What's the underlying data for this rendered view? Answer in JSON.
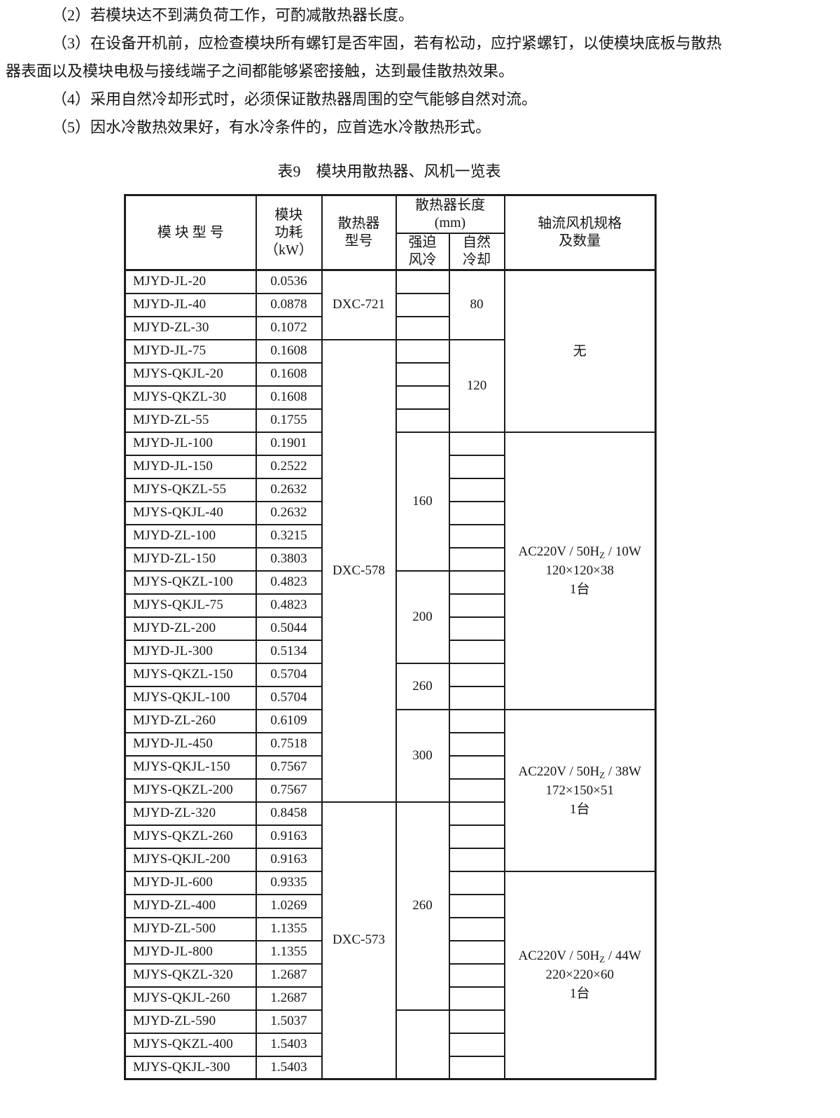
{
  "page": {
    "paragraphs": [
      {
        "lines": [
          "（2）若模块达不到满负荷工作，可酌减散热器长度。"
        ]
      },
      {
        "lines": [
          "（3）在设备开机前，应检查模块所有螺钉是否牢固，若有松动，应拧紧螺钉，以使模块底板与散热",
          "器表面以及模块电极与接线端子之间都能够紧密接触，达到最佳散热效果。"
        ]
      },
      {
        "lines": [
          "（4）采用自然冷却形式时，必须保证散热器周围的空气能够自然对流。"
        ]
      },
      {
        "lines": [
          "（5）因水冷散热效果好，有水冷条件的，应首选水冷散热形式。"
        ]
      }
    ],
    "table_title": "表9　模块用散热器、风机一览表"
  },
  "table": {
    "headers": {
      "module_model": "模 块 型 号",
      "module_power_lines": [
        "模块",
        "功耗",
        "（kW）"
      ],
      "heatsink_model_lines": [
        "散热器",
        "型号"
      ],
      "heatsink_length_lines": [
        "散热器长度",
        "(mm)"
      ],
      "forced_air_lines": [
        "强迫",
        "风冷"
      ],
      "natural_cooling_lines": [
        "自然",
        "冷却"
      ],
      "fan_spec_lines": [
        "轴流风机规格",
        "及数量"
      ]
    },
    "rows": [
      {
        "model": "MJYD-JL-20",
        "power": "0.0536"
      },
      {
        "model": "MJYD-JL-40",
        "power": "0.0878"
      },
      {
        "model": "MJYD-ZL-30",
        "power": "0.1072"
      },
      {
        "model": "MJYD-JL-75",
        "power": "0.1608"
      },
      {
        "model": "MJYS-QKJL-20",
        "power": "0.1608"
      },
      {
        "model": "MJYS-QKZL-30",
        "power": "0.1608"
      },
      {
        "model": "MJYD-ZL-55",
        "power": "0.1755"
      },
      {
        "model": "MJYD-JL-100",
        "power": "0.1901"
      },
      {
        "model": "MJYD-JL-150",
        "power": "0.2522"
      },
      {
        "model": "MJYS-QKZL-55",
        "power": "0.2632"
      },
      {
        "model": "MJYS-QKJL-40",
        "power": "0.2632"
      },
      {
        "model": "MJYD-ZL-100",
        "power": "0.3215"
      },
      {
        "model": "MJYD-ZL-150",
        "power": "0.3803"
      },
      {
        "model": "MJYS-QKZL-100",
        "power": "0.4823"
      },
      {
        "model": "MJYS-QKJL-75",
        "power": "0.4823"
      },
      {
        "model": "MJYD-ZL-200",
        "power": "0.5044"
      },
      {
        "model": "MJYD-JL-300",
        "power": "0.5134"
      },
      {
        "model": "MJYS-QKZL-150",
        "power": "0.5704"
      },
      {
        "model": "MJYS-QKJL-100",
        "power": "0.5704"
      },
      {
        "model": "MJYD-ZL-260",
        "power": "0.6109"
      },
      {
        "model": "MJYD-JL-450",
        "power": "0.7518"
      },
      {
        "model": "MJYS-QKJL-150",
        "power": "0.7567"
      },
      {
        "model": "MJYS-QKZL-200",
        "power": "0.7567"
      },
      {
        "model": "MJYD-ZL-320",
        "power": "0.8458"
      },
      {
        "model": "MJYS-QKZL-260",
        "power": "0.9163"
      },
      {
        "model": "MJYS-QKJL-200",
        "power": "0.9163"
      },
      {
        "model": "MJYD-JL-600",
        "power": "0.9335"
      },
      {
        "model": "MJYD-ZL-400",
        "power": "1.0269"
      },
      {
        "model": "MJYD-ZL-500",
        "power": "1.1355"
      },
      {
        "model": "MJYD-JL-800",
        "power": "1.1355"
      },
      {
        "model": "MJYS-QKZL-320",
        "power": "1.2687"
      },
      {
        "model": "MJYS-QKJL-260",
        "power": "1.2687"
      },
      {
        "model": "MJYD-ZL-590",
        "power": "1.5037"
      },
      {
        "model": "MJYS-QKZL-400",
        "power": "1.5403"
      },
      {
        "model": "MJYS-QKJL-300",
        "power": "1.5403"
      }
    ],
    "heatsink_groups": [
      {
        "model": "DXC-721",
        "span": 3
      },
      {
        "model": "DXC-578",
        "span": 20
      },
      {
        "model": "DXC-573",
        "span": 12
      }
    ],
    "forced_air_cells": [
      {
        "value": "",
        "span": 1
      },
      {
        "value": "",
        "span": 1
      },
      {
        "value": "",
        "span": 1
      },
      {
        "value": "",
        "span": 1
      },
      {
        "value": "",
        "span": 1
      },
      {
        "value": "",
        "span": 1
      },
      {
        "value": "",
        "span": 1
      },
      {
        "value": "160",
        "span": 6
      },
      {
        "value": "200",
        "span": 4
      },
      {
        "value": "260",
        "span": 2
      },
      {
        "value": "300",
        "span": 4
      },
      {
        "value": "260",
        "span": 9
      },
      {
        "value": "",
        "span": 3
      }
    ],
    "natural_cooling_cells": [
      {
        "value": "80",
        "span": 3
      },
      {
        "value": "120",
        "span": 4
      },
      {
        "value": "",
        "span": 1
      },
      {
        "value": "",
        "span": 1
      },
      {
        "value": "",
        "span": 1
      },
      {
        "value": "",
        "span": 1
      },
      {
        "value": "",
        "span": 1
      },
      {
        "value": "",
        "span": 1
      },
      {
        "value": "",
        "span": 1
      },
      {
        "value": "",
        "span": 1
      },
      {
        "value": "",
        "span": 1
      },
      {
        "value": "",
        "span": 1
      },
      {
        "value": "",
        "span": 1
      },
      {
        "value": "",
        "span": 1
      },
      {
        "value": "",
        "span": 1
      },
      {
        "value": "",
        "span": 1
      },
      {
        "value": "",
        "span": 1
      },
      {
        "value": "",
        "span": 1
      },
      {
        "value": "",
        "span": 1
      },
      {
        "value": "",
        "span": 1
      },
      {
        "value": "",
        "span": 1
      },
      {
        "value": "",
        "span": 1
      },
      {
        "value": "",
        "span": 1
      },
      {
        "value": "",
        "span": 1
      },
      {
        "value": "",
        "span": 1
      },
      {
        "value": "",
        "span": 1
      },
      {
        "value": "",
        "span": 1
      },
      {
        "value": "",
        "span": 1
      },
      {
        "value": "",
        "span": 1
      },
      {
        "value": "",
        "span": 1
      }
    ],
    "fan_groups": [
      {
        "span": 7,
        "lines": [
          {
            "text": "无"
          }
        ]
      },
      {
        "span": 12,
        "lines": [
          {
            "pre": "AC220V / 50H",
            "sub": "Z",
            "post": " / 10W"
          },
          {
            "text": "120×120×38"
          },
          {
            "text": "1台"
          }
        ]
      },
      {
        "span": 7,
        "lines": [
          {
            "pre": "AC220V / 50H",
            "sub": "Z",
            "post": " / 38W"
          },
          {
            "text": "172×150×51"
          },
          {
            "text": "1台"
          }
        ]
      },
      {
        "span": 9,
        "lines": [
          {
            "pre": "AC220V / 50H",
            "sub": "Z",
            "post": " / 44W"
          },
          {
            "text": "220×220×60"
          },
          {
            "text": "1台"
          }
        ]
      }
    ]
  }
}
